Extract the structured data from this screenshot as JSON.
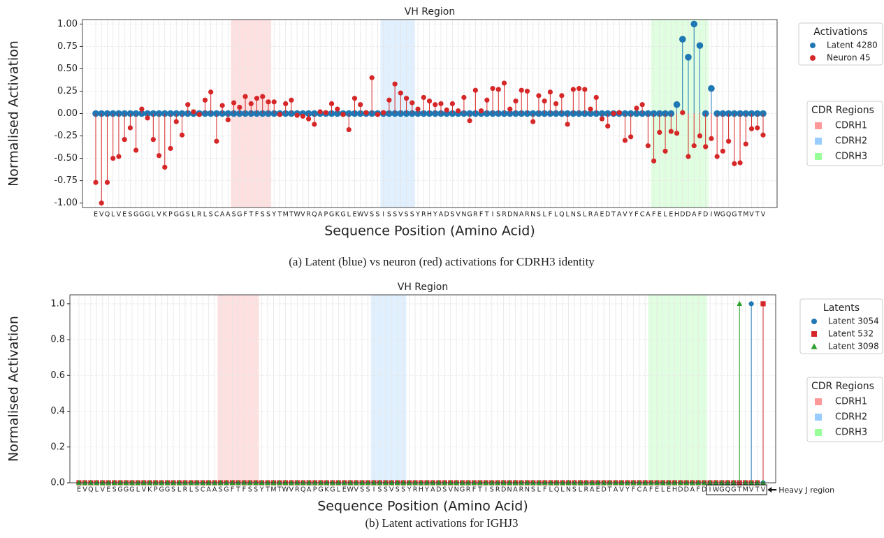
{
  "chart_data": [
    {
      "type": "stem",
      "title": "VH Region",
      "xlabel": "Sequence Position (Amino Acid)",
      "ylabel": "Normalised Activation",
      "caption": "(a) Latent (blue) vs neuron (red) activations for CDRH3 identity",
      "legend_title": "Activations",
      "regions_title": "CDR Regions",
      "grid": true,
      "categories": [
        "E",
        "V",
        "Q",
        "L",
        "V",
        "E",
        "S",
        "G",
        "G",
        "G",
        "L",
        "V",
        "K",
        "P",
        "G",
        "G",
        "S",
        "L",
        "R",
        "L",
        "S",
        "C",
        "A",
        "A",
        "S",
        "G",
        "F",
        "T",
        "F",
        "S",
        "S",
        "Y",
        "T",
        "M",
        "T",
        "W",
        "V",
        "R",
        "Q",
        "A",
        "P",
        "G",
        "K",
        "G",
        "L",
        "E",
        "W",
        "V",
        "S",
        "S",
        "I",
        "S",
        "S",
        "V",
        "S",
        "S",
        "Y",
        "R",
        "H",
        "Y",
        "A",
        "D",
        "S",
        "V",
        "N",
        "G",
        "R",
        "F",
        "T",
        "I",
        "S",
        "R",
        "D",
        "N",
        "A",
        "R",
        "N",
        "S",
        "L",
        "F",
        "L",
        "Q",
        "L",
        "N",
        "S",
        "L",
        "R",
        "A",
        "E",
        "D",
        "T",
        "A",
        "V",
        "Y",
        "F",
        "C",
        "A",
        "F",
        "E",
        "L",
        "E",
        "H",
        "D",
        "D",
        "A",
        "F",
        "D",
        "I",
        "W",
        "G",
        "Q",
        "G",
        "T",
        "M",
        "V",
        "T",
        "V"
      ],
      "ylim": [
        -1.05,
        1.05
      ],
      "yticks": [
        {
          "value": -1,
          "label": "-1.00"
        },
        {
          "value": -0.75,
          "label": "-0.75"
        },
        {
          "value": -0.5,
          "label": "-0.50"
        },
        {
          "value": -0.25,
          "label": "-0.25"
        },
        {
          "value": 0,
          "label": "0.00"
        },
        {
          "value": 0.25,
          "label": "0.25"
        },
        {
          "value": 0.5,
          "label": "0.50"
        },
        {
          "value": 0.75,
          "label": "0.75"
        },
        {
          "value": 1,
          "label": "1.00"
        }
      ],
      "regions": [
        {
          "name": "CDRH1",
          "color": "#ff9999",
          "start": 24,
          "end": 30
        },
        {
          "name": "CDRH2",
          "color": "#99ccff",
          "start": 50,
          "end": 55
        },
        {
          "name": "CDRH3",
          "color": "#99ff99",
          "start": 97,
          "end": 106
        }
      ],
      "series": [
        {
          "name": "Latent 4280",
          "color": "#1f77b4",
          "marker": "circle",
          "values": [
            0,
            0,
            0,
            0,
            0,
            0,
            0,
            0,
            0,
            0,
            0,
            0,
            0,
            0,
            0,
            0,
            0,
            0,
            0,
            0,
            0,
            0,
            0,
            0,
            0,
            0,
            0,
            0,
            0,
            0,
            0,
            0,
            0,
            0,
            0,
            0,
            0,
            0,
            0,
            0,
            0,
            0,
            0,
            0,
            0,
            0,
            0,
            0,
            0,
            0,
            0,
            0,
            0,
            0,
            0,
            0,
            0,
            0,
            0,
            0,
            0,
            0,
            0,
            0,
            0,
            0,
            0,
            0,
            0,
            0,
            0,
            0,
            0,
            0,
            0,
            0,
            0,
            0,
            0,
            0,
            0,
            0,
            0,
            0,
            0,
            0,
            0,
            0,
            0,
            0,
            0,
            0,
            0,
            0,
            0,
            0,
            0,
            0,
            0,
            0,
            0,
            0.1,
            0.83,
            0.63,
            1.0,
            0.76,
            0,
            0.28,
            0,
            0,
            0,
            0,
            0,
            0,
            0,
            0,
            0
          ]
        },
        {
          "name": "Neuron 45",
          "color": "#d62728",
          "marker": "circle",
          "values": [
            -0.77,
            -1.0,
            -0.77,
            -0.5,
            -0.48,
            -0.29,
            -0.16,
            -0.41,
            0.05,
            -0.05,
            -0.29,
            -0.47,
            -0.6,
            -0.39,
            -0.09,
            -0.24,
            0.1,
            0.02,
            -0.01,
            0.15,
            0.24,
            -0.31,
            0.09,
            -0.07,
            0.12,
            0.07,
            0.19,
            0.11,
            0.17,
            0.19,
            0.13,
            0.13,
            -0.01,
            0.11,
            0.15,
            -0.02,
            -0.03,
            -0.06,
            -0.12,
            0.02,
            0.01,
            0.11,
            0.05,
            -0.01,
            -0.18,
            0.17,
            0.1,
            0.01,
            0.4,
            -0.01,
            0.01,
            0.15,
            0.33,
            0.23,
            0.17,
            0.12,
            0.05,
            0.18,
            0.14,
            0.1,
            0.11,
            0.04,
            0.11,
            0.03,
            0.18,
            -0.08,
            0.26,
            0.03,
            0.15,
            0.28,
            0.27,
            0.34,
            0.05,
            0.14,
            0.26,
            0.25,
            -0.09,
            0.2,
            0.14,
            0.24,
            0.11,
            0.2,
            -0.12,
            0.27,
            0.28,
            0.27,
            0.05,
            0.18,
            -0.06,
            -0.14,
            0.0,
            0.01,
            -0.3,
            -0.26,
            0.06,
            0.1,
            -0.36,
            -0.53,
            -0.21,
            -0.42,
            -0.2,
            -0.22,
            0.01,
            -0.48,
            -0.36,
            -0.25,
            -0.37,
            -0.28,
            -0.48,
            -0.42,
            -0.31,
            -0.56,
            -0.55,
            -0.34,
            -0.17,
            -0.16,
            -0.24
          ]
        }
      ]
    },
    {
      "type": "stem",
      "title": "VH Region",
      "xlabel": "Sequence Position (Amino Acid)",
      "ylabel": "Normalised Activation",
      "caption": "(b) Latent activations for IGHJ3",
      "legend_title": "Latents",
      "regions_title": "CDR Regions",
      "grid": true,
      "categories": [
        "E",
        "V",
        "Q",
        "L",
        "V",
        "E",
        "S",
        "G",
        "G",
        "G",
        "L",
        "V",
        "K",
        "P",
        "G",
        "G",
        "S",
        "L",
        "R",
        "L",
        "S",
        "C",
        "A",
        "A",
        "S",
        "G",
        "F",
        "T",
        "F",
        "S",
        "S",
        "Y",
        "T",
        "M",
        "T",
        "W",
        "V",
        "R",
        "Q",
        "A",
        "P",
        "G",
        "K",
        "G",
        "L",
        "E",
        "W",
        "V",
        "S",
        "S",
        "I",
        "S",
        "S",
        "V",
        "S",
        "S",
        "Y",
        "R",
        "H",
        "Y",
        "A",
        "D",
        "S",
        "V",
        "N",
        "G",
        "R",
        "F",
        "T",
        "I",
        "S",
        "R",
        "D",
        "N",
        "A",
        "R",
        "N",
        "S",
        "L",
        "F",
        "L",
        "Q",
        "L",
        "N",
        "S",
        "L",
        "R",
        "A",
        "E",
        "D",
        "T",
        "A",
        "V",
        "Y",
        "F",
        "C",
        "A",
        "F",
        "E",
        "L",
        "E",
        "H",
        "D",
        "D",
        "A",
        "F",
        "D",
        "I",
        "W",
        "G",
        "Q",
        "G",
        "T",
        "M",
        "V",
        "T",
        "V"
      ],
      "ylim": [
        0,
        1.05
      ],
      "yticks": [
        {
          "value": 0,
          "label": "0.0"
        },
        {
          "value": 0.2,
          "label": "0.2"
        },
        {
          "value": 0.4,
          "label": "0.4"
        },
        {
          "value": 0.6,
          "label": "0.6"
        },
        {
          "value": 0.8,
          "label": "0.8"
        },
        {
          "value": 1,
          "label": "1.0"
        }
      ],
      "regions": [
        {
          "name": "CDRH1",
          "color": "#ff9999",
          "start": 24,
          "end": 30
        },
        {
          "name": "CDRH2",
          "color": "#99ccff",
          "start": 50,
          "end": 55
        },
        {
          "name": "CDRH3",
          "color": "#99ff99",
          "start": 97,
          "end": 106
        }
      ],
      "annotation": {
        "text": "Heavy J region",
        "start": 107,
        "end": 116
      },
      "series": [
        {
          "name": "Latent 3054",
          "color": "#1f77b4",
          "marker": "circle",
          "values": [
            0,
            0,
            0,
            0,
            0,
            0,
            0,
            0,
            0,
            0,
            0,
            0,
            0,
            0,
            0,
            0,
            0,
            0,
            0,
            0,
            0,
            0,
            0,
            0,
            0,
            0,
            0,
            0,
            0,
            0,
            0,
            0,
            0,
            0,
            0,
            0,
            0,
            0,
            0,
            0,
            0,
            0,
            0,
            0,
            0,
            0,
            0,
            0,
            0,
            0,
            0,
            0,
            0,
            0,
            0,
            0,
            0,
            0,
            0,
            0,
            0,
            0,
            0,
            0,
            0,
            0,
            0,
            0,
            0,
            0,
            0,
            0,
            0,
            0,
            0,
            0,
            0,
            0,
            0,
            0,
            0,
            0,
            0,
            0,
            0,
            0,
            0,
            0,
            0,
            0,
            0,
            0,
            0,
            0,
            0,
            0,
            0,
            0,
            0,
            0,
            0,
            0,
            0,
            0,
            0,
            0,
            0,
            0,
            0,
            0,
            0,
            0,
            0,
            0,
            1,
            0,
            0
          ]
        },
        {
          "name": "Latent 532",
          "color": "#d62728",
          "marker": "square",
          "values": [
            0,
            0,
            0,
            0,
            0,
            0,
            0,
            0,
            0,
            0,
            0,
            0,
            0,
            0,
            0,
            0,
            0,
            0,
            0,
            0,
            0,
            0,
            0,
            0,
            0,
            0,
            0,
            0,
            0,
            0,
            0,
            0,
            0,
            0,
            0,
            0,
            0,
            0,
            0,
            0,
            0,
            0,
            0,
            0,
            0,
            0,
            0,
            0,
            0,
            0,
            0,
            0,
            0,
            0,
            0,
            0,
            0,
            0,
            0,
            0,
            0,
            0,
            0,
            0,
            0,
            0,
            0,
            0,
            0,
            0,
            0,
            0,
            0,
            0,
            0,
            0,
            0,
            0,
            0,
            0,
            0,
            0,
            0,
            0,
            0,
            0,
            0,
            0,
            0,
            0,
            0,
            0,
            0,
            0,
            0,
            0,
            0,
            0,
            0,
            0,
            0,
            0,
            0,
            0,
            0,
            0,
            0,
            0,
            0,
            0,
            0,
            0,
            0,
            0,
            0,
            0,
            1
          ]
        },
        {
          "name": "Latent 3098",
          "color": "#2ca02c",
          "marker": "triangle",
          "values": [
            0,
            0,
            0,
            0,
            0,
            0,
            0,
            0,
            0,
            0,
            0,
            0,
            0,
            0,
            0,
            0,
            0,
            0,
            0,
            0,
            0,
            0,
            0,
            0,
            0,
            0,
            0,
            0,
            0,
            0,
            0,
            0,
            0,
            0,
            0,
            0,
            0,
            0,
            0,
            0,
            0,
            0,
            0,
            0,
            0,
            0,
            0,
            0,
            0,
            0,
            0,
            0,
            0,
            0,
            0,
            0,
            0,
            0,
            0,
            0,
            0,
            0,
            0,
            0,
            0,
            0,
            0,
            0,
            0,
            0,
            0,
            0,
            0,
            0,
            0,
            0,
            0,
            0,
            0,
            0,
            0,
            0,
            0,
            0,
            0,
            0,
            0,
            0,
            0,
            0,
            0,
            0,
            0,
            0,
            0,
            0,
            0,
            0,
            0,
            0,
            0,
            0,
            0,
            0,
            0,
            0,
            0,
            0,
            0,
            0,
            0,
            0,
            1,
            0,
            0,
            0,
            0
          ]
        }
      ]
    }
  ]
}
